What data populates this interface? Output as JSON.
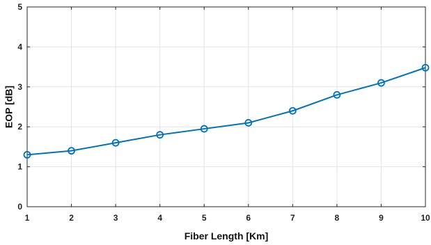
{
  "chart_data": {
    "type": "line",
    "xlabel": "Fiber Length [Km]",
    "ylabel": "EOP [dB]",
    "xlim": [
      1,
      10
    ],
    "ylim": [
      0,
      5
    ],
    "xticks": [
      "1",
      "2",
      "3",
      "4",
      "5",
      "6",
      "7",
      "8",
      "9",
      "10"
    ],
    "yticks": [
      "0",
      "1",
      "2",
      "3",
      "4",
      "5"
    ],
    "grid": true,
    "legend": false,
    "colors": {
      "series": "#0072bd",
      "grid": "#e3e3e3",
      "axis": "#262626"
    },
    "series": [
      {
        "marker": "circle",
        "x": [
          1,
          2,
          3,
          4,
          5,
          6,
          7,
          8,
          9,
          10
        ],
        "y": [
          1.3,
          1.4,
          1.6,
          1.8,
          1.95,
          2.1,
          2.4,
          2.8,
          3.1,
          3.48
        ]
      }
    ]
  }
}
